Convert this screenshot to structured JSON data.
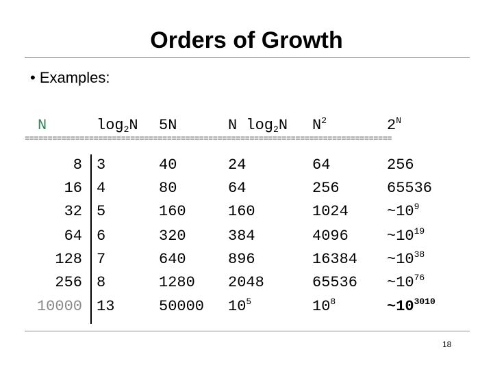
{
  "title": "Orders of Growth",
  "bullet": "• Examples:",
  "headers": {
    "n": "N",
    "log_base": "log",
    "log_sub": "2",
    "log_var": "N",
    "fiveN": "5N",
    "nlog_pre": "N log",
    "nlog_sub": "2",
    "nlog_post": "N",
    "nsq_base": "N",
    "nsq_exp": "2",
    "twoN_base": "2",
    "twoN_exp": "N"
  },
  "separator": "================================================================================",
  "rows": [
    {
      "n": "8",
      "log": "3",
      "five": "40",
      "nlog": "24",
      "nsq": "64",
      "two_base": "256",
      "two_exp": ""
    },
    {
      "n": "16",
      "log": "4",
      "five": "80",
      "nlog": "64",
      "nsq": "256",
      "two_base": "65536",
      "two_exp": ""
    },
    {
      "n": "32",
      "log": "5",
      "five": "160",
      "nlog": "160",
      "nsq": "1024",
      "two_base": "~10",
      "two_exp": "9"
    },
    {
      "n": "64",
      "log": "6",
      "five": "320",
      "nlog": "384",
      "nsq": "4096",
      "two_base": "~10",
      "two_exp": "19"
    },
    {
      "n": "128",
      "log": "7",
      "five": "640",
      "nlog": "896",
      "nsq": "16384",
      "two_base": "~10",
      "two_exp": "38"
    },
    {
      "n": "256",
      "log": "8",
      "five": "1280",
      "nlog": "2048",
      "nsq": "65536",
      "two_base": "~10",
      "two_exp": "76"
    }
  ],
  "last_row": {
    "n": "10000",
    "log": "13",
    "five": "50000",
    "nlog_base": "10",
    "nlog_exp": "5",
    "nsq_base": "10",
    "nsq_exp": "8",
    "two_base": "~10",
    "two_exp": "3010"
  },
  "page_number": "18"
}
